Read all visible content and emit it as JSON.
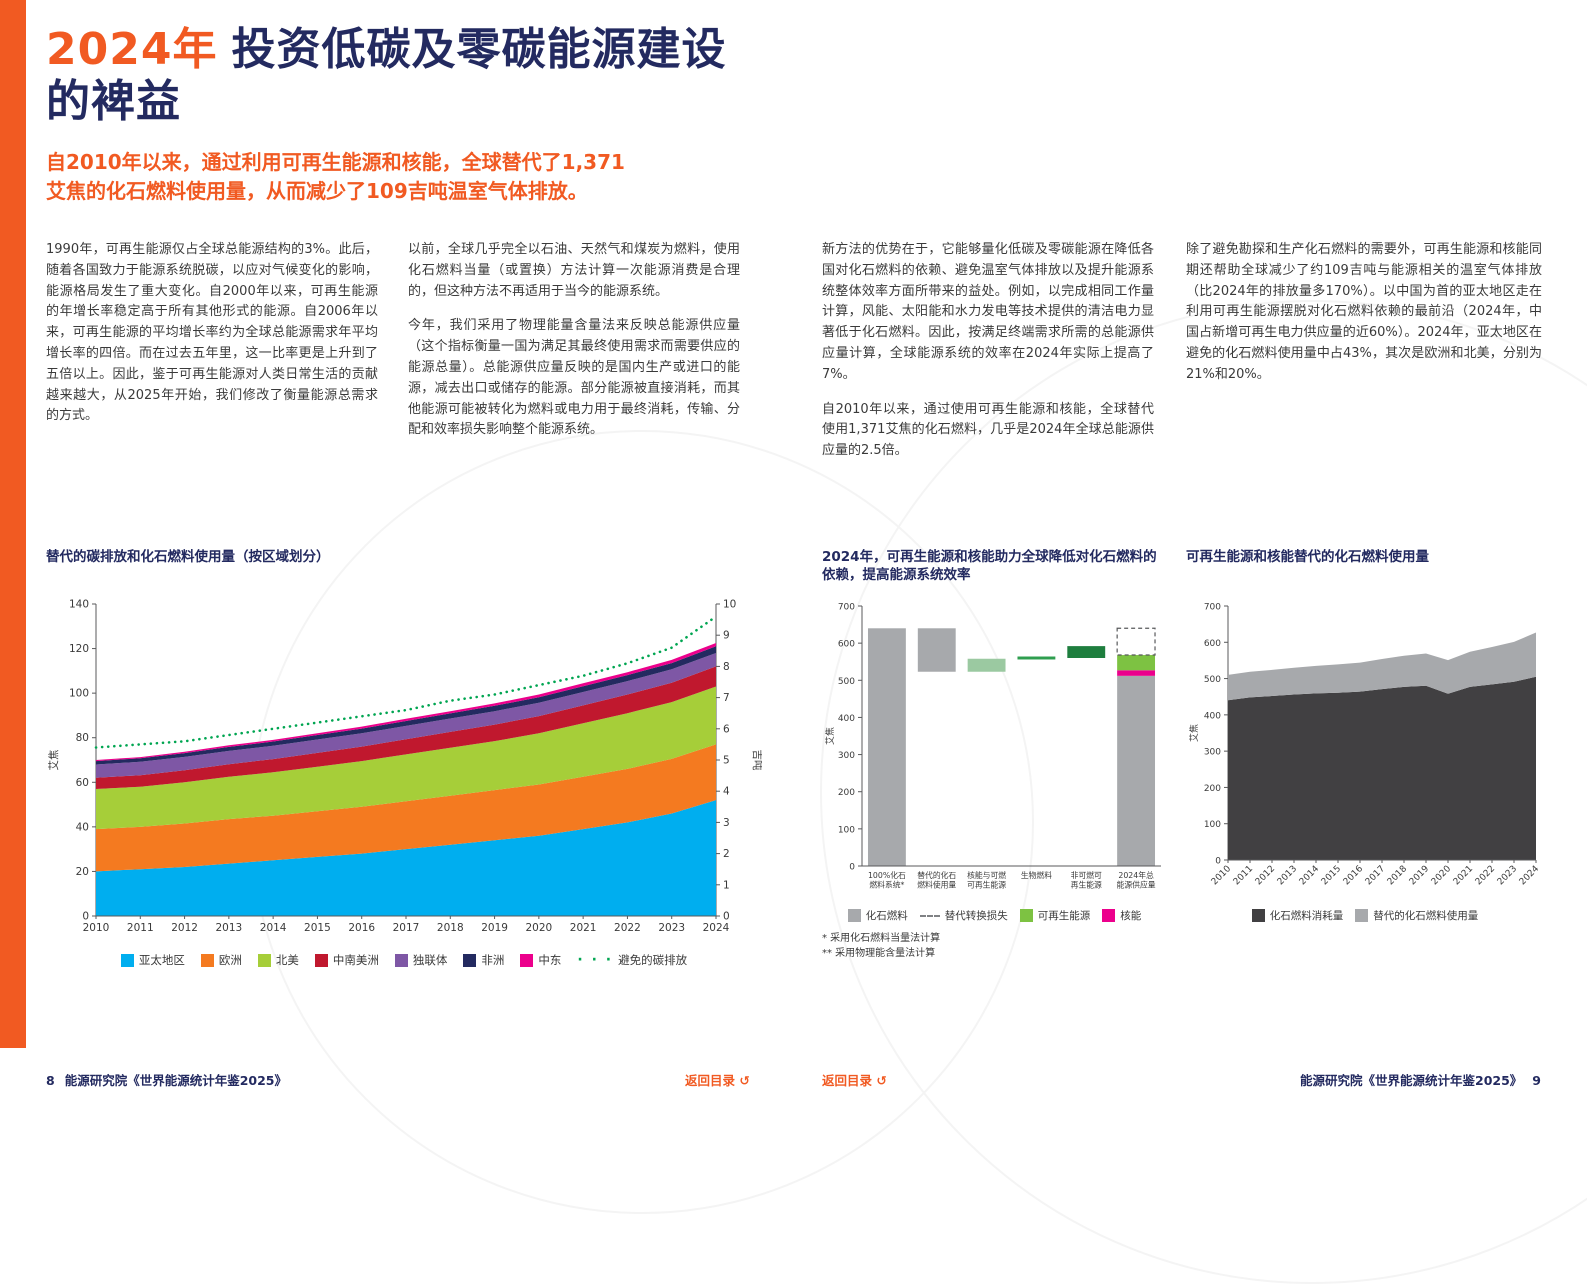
{
  "header": {
    "title_year": "2024年",
    "title_line1": "投资低碳及零碳能源建设",
    "title_line2": "的裨益",
    "subtitle_line1": "自2010年以来，通过利用可再生能源和核能，全球替代了1,371",
    "subtitle_line2": "艾焦的化石燃料使用量，从而减少了109吉吨温室气体排放。"
  },
  "body": {
    "col1": [
      "1990年，可再生能源仅占全球总能源结构的3%。此后，随着各国致力于能源系统脱碳，以应对气候变化的影响，能源格局发生了重大变化。自2000年以来，可再生能源的年增长率稳定高于所有其他形式的能源。自2006年以来，可再生能源的平均增长率约为全球总能源需求年平均增长率的四倍。而在过去五年里，这一比率更是上升到了五倍以上。因此，鉴于可再生能源对人类日常生活的贡献越来越大，从2025年开始，我们修改了衡量能源总需求的方式。"
    ],
    "col2": [
      "以前，全球几乎完全以石油、天然气和煤炭为燃料，使用化石燃料当量（或置换）方法计算一次能源消费是合理的，但这种方法不再适用于当今的能源系统。",
      "今年，我们采用了物理能量含量法来反映总能源供应量（这个指标衡量一国为满足其最终使用需求而需要供应的能源总量）。总能源供应量反映的是国内生产或进口的能源，减去出口或储存的能源。部分能源被直接消耗，而其他能源可能被转化为燃料或电力用于最终消耗，传输、分配和效率损失影响整个能源系统。"
    ],
    "col3": [
      "新方法的优势在于，它能够量化低碳及零碳能源在降低各国对化石燃料的依赖、避免温室气体排放以及提升能源系统整体效率方面所带来的益处。例如，以完成相同工作量计算，风能、太阳能和水力发电等技术提供的清洁电力显著低于化石燃料。因此，按满足终端需求所需的总能源供应量计算，全球能源系统的效率在2024年实际上提高了7%。",
      "自2010年以来，通过使用可再生能源和核能，全球替代使用1,371艾焦的化石燃料，几乎是2024年全球总能源供应量的2.5倍。"
    ],
    "col4": [
      "除了避免勘探和生产化石燃料的需要外，可再生能源和核能同期还帮助全球减少了约109吉吨与能源相关的温室气体排放（比2024年的排放量多170%）。以中国为首的亚太地区走在利用可再生能源摆脱对化石燃料依赖的最前沿（2024年，中国占新增可再生电力供应量的近60%）。2024年，亚太地区在避免的化石燃料使用量中占43%，其次是欧洲和北美，分别为21%和20%。"
    ]
  },
  "chart_data": [
    {
      "type": "area",
      "title": "替代的碳排放和化石燃料使用量（按区域划分）",
      "ylabel_left": "艾焦",
      "ylabel_right": "吉吨",
      "ylim": [
        0,
        140
      ],
      "ytick_step": 20,
      "ylim_right": [
        0,
        10
      ],
      "ytick_step_right": 1,
      "x": [
        2010,
        2011,
        2012,
        2013,
        2014,
        2015,
        2016,
        2017,
        2018,
        2019,
        2020,
        2021,
        2022,
        2023,
        2024
      ],
      "series": [
        {
          "name": "亚太地区",
          "color": "#00aeef",
          "values": [
            20,
            21,
            22,
            23.5,
            25,
            26.5,
            28,
            30,
            32,
            34,
            36,
            39,
            42,
            46,
            52
          ]
        },
        {
          "name": "欧洲",
          "color": "#f47a20",
          "values": [
            19,
            19,
            19.5,
            20,
            20,
            20.5,
            21,
            21.5,
            22,
            22.5,
            23,
            23.5,
            24,
            24.5,
            25
          ]
        },
        {
          "name": "北美",
          "color": "#a6ce39",
          "values": [
            18,
            18,
            18.5,
            19,
            19.5,
            20,
            20.5,
            21,
            21.5,
            22,
            23,
            24,
            25,
            25.5,
            26
          ]
        },
        {
          "name": "中南美洲",
          "color": "#c0182e",
          "values": [
            5,
            5.2,
            5.4,
            5.6,
            5.9,
            6.2,
            6.5,
            6.8,
            7.1,
            7.4,
            7.7,
            8,
            8.4,
            8.7,
            9
          ]
        },
        {
          "name": "独联体",
          "color": "#7e57a5",
          "values": [
            6,
            6,
            6,
            6,
            6,
            6,
            6,
            6,
            6,
            6,
            6,
            6,
            6,
            6,
            6
          ]
        },
        {
          "name": "非洲",
          "color": "#232a60",
          "values": [
            1.5,
            1.6,
            1.7,
            1.8,
            1.9,
            2,
            2.1,
            2.2,
            2.3,
            2.4,
            2.5,
            2.6,
            2.7,
            2.8,
            3
          ]
        },
        {
          "name": "中东",
          "color": "#ec008c",
          "values": [
            0.5,
            0.5,
            0.6,
            0.7,
            0.7,
            0.8,
            0.9,
            1,
            1,
            1.1,
            1.2,
            1.3,
            1.3,
            1.4,
            1.5
          ]
        }
      ],
      "line_series": {
        "name": "避免的碳排放",
        "color": "#00a551",
        "axis": "right",
        "style": "dotted",
        "values": [
          5.4,
          5.5,
          5.6,
          5.8,
          6,
          6.2,
          6.4,
          6.6,
          6.9,
          7.1,
          7.4,
          7.7,
          8.1,
          8.6,
          9.6
        ]
      },
      "legend": [
        {
          "label": "亚太地区",
          "color": "#00aeef",
          "swatch": "square"
        },
        {
          "label": "欧洲",
          "color": "#f47a20",
          "swatch": "square"
        },
        {
          "label": "北美",
          "color": "#a6ce39",
          "swatch": "square"
        },
        {
          "label": "中南美洲",
          "color": "#c0182e",
          "swatch": "square"
        },
        {
          "label": "独联体",
          "color": "#7e57a5",
          "swatch": "square"
        },
        {
          "label": "非洲",
          "color": "#232a60",
          "swatch": "square"
        },
        {
          "label": "中东",
          "color": "#ec008c",
          "swatch": "square"
        },
        {
          "label": "避免的碳排放",
          "color": "#00a551",
          "swatch": "dots"
        }
      ]
    },
    {
      "type": "waterfall",
      "title": "2024年，可再生能源和核能助力全球降低对化石燃料的依赖，提高能源系统效率",
      "ylabel_left": "艾焦",
      "ylim": [
        0,
        700
      ],
      "ytick_step": 100,
      "bars": [
        {
          "label_lines": [
            "100%化石",
            "燃料系统*"
          ],
          "segments": [
            {
              "from": 0,
              "to": 640,
              "color": "#a7a9ac"
            }
          ]
        },
        {
          "label_lines": [
            "替代的化石",
            "燃料使用量"
          ],
          "segments": [
            {
              "from": 523,
              "to": 640,
              "color": "#a7a9ac"
            }
          ]
        },
        {
          "label_lines": [
            "核能与可燃",
            "可再生能源"
          ],
          "segments": [
            {
              "from": 523,
              "to": 558,
              "color": "#9bc9a1"
            }
          ]
        },
        {
          "label_lines": [
            "生物燃料"
          ],
          "segments": [
            {
              "from": 556,
              "to": 564,
              "color": "#2f9e4f"
            }
          ]
        },
        {
          "label_lines": [
            "非可燃可",
            "再生能源"
          ],
          "segments": [
            {
              "from": 560,
              "to": 592,
              "color": "#1e7e3e"
            }
          ]
        },
        {
          "label_lines": [
            "2024年总",
            "能源供应量"
          ],
          "segments": [
            {
              "from": 0,
              "to": 512,
              "color": "#a7a9ac"
            },
            {
              "from": 512,
              "to": 527,
              "color": "#ec008c"
            },
            {
              "from": 527,
              "to": 568,
              "color": "#7dc242"
            },
            {
              "from": 568,
              "to": 640,
              "dashed": true
            }
          ]
        }
      ],
      "legend": [
        {
          "label": "化石燃料",
          "color": "#a7a9ac",
          "swatch": "square"
        },
        {
          "label": "替代转换损失",
          "color": "#808285",
          "swatch": "dash"
        },
        {
          "label": "可再生能源",
          "color": "#7dc242",
          "swatch": "square"
        },
        {
          "label": "核能",
          "color": "#ec008c",
          "swatch": "square"
        }
      ],
      "footnotes": [
        "* 采用化石燃料当量法计算",
        "** 采用物理能含量法计算"
      ]
    },
    {
      "type": "area",
      "title": "可再生能源和核能替代的化石燃料使用量",
      "ylabel_left": "艾焦",
      "ylim": [
        0,
        700
      ],
      "ytick_step": 100,
      "x": [
        2010,
        2011,
        2012,
        2013,
        2014,
        2015,
        2016,
        2017,
        2018,
        2019,
        2020,
        2021,
        2022,
        2023,
        2024
      ],
      "x_rotate": true,
      "series": [
        {
          "name": "化石燃料消耗量",
          "color": "#414042",
          "values": [
            440,
            448,
            452,
            456,
            459,
            461,
            464,
            471,
            477,
            480,
            458,
            477,
            484,
            491,
            505
          ]
        },
        {
          "name": "替代的化石燃料使用量",
          "color": "#a7a9ac",
          "values": [
            70,
            71,
            72,
            74,
            76,
            78,
            80,
            83,
            86,
            89,
            93,
            97,
            103,
            110,
            122
          ]
        }
      ],
      "legend": [
        {
          "label": "化石燃料消耗量",
          "color": "#414042",
          "swatch": "square"
        },
        {
          "label": "替代的化石燃料使用量",
          "color": "#a7a9ac",
          "swatch": "square"
        }
      ]
    }
  ],
  "footer": {
    "left_page_number": "8",
    "left_text": "能源研究院《世界能源统计年鉴2025》",
    "return_label": "返回目录",
    "return_icon": "↺",
    "right_text": "能源研究院《世界能源统计年鉴2025》",
    "right_page_number": "9"
  }
}
